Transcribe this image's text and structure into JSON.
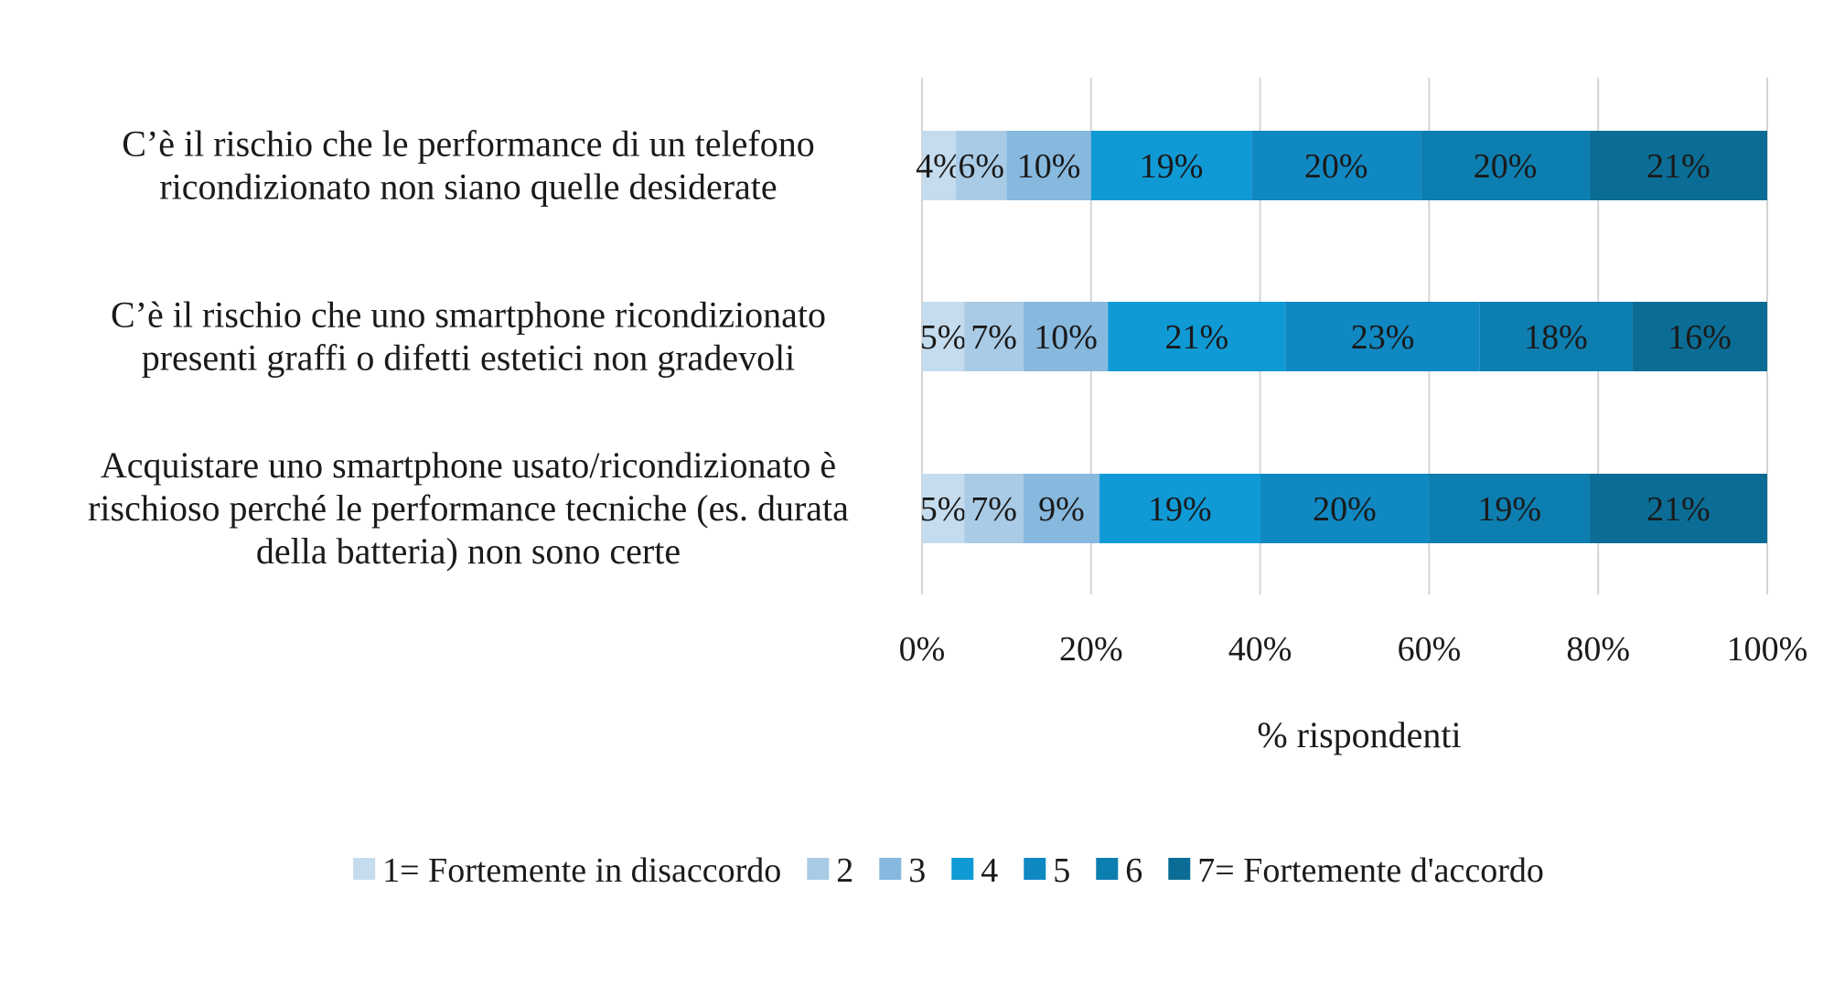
{
  "chart_data": {
    "type": "bar",
    "orientation": "horizontal",
    "stacked": true,
    "normalized": true,
    "title": "",
    "xlabel": "% rispondenti",
    "ylabel": "",
    "xlim": [
      0,
      100
    ],
    "x_ticks": [
      "0%",
      "20%",
      "40%",
      "60%",
      "80%",
      "100%"
    ],
    "x_tick_values": [
      0,
      20,
      40,
      60,
      80,
      100
    ],
    "grid": true,
    "legend_position": "bottom",
    "categories": [
      [
        "C’è il rischio che le performance di un telefono",
        "ricondizionato non siano quelle desiderate"
      ],
      [
        "C’è il rischio che uno smartphone ricondizionato",
        "presenti graffi o difetti estetici non gradevoli"
      ],
      [
        "Acquistare uno smartphone usato/ricondizionato è",
        "rischioso perché le performance tecniche (es. durata",
        "della batteria) non sono certe"
      ]
    ],
    "series": [
      {
        "name": "1= Fortemente in disaccordo",
        "color": "#c5dcee",
        "values": [
          4,
          5,
          5
        ],
        "labels": [
          "4%",
          "5%",
          "5%"
        ]
      },
      {
        "name": "2",
        "color": "#a9cbe6",
        "values": [
          6,
          7,
          7
        ],
        "labels": [
          "6%",
          "7%",
          "7%"
        ]
      },
      {
        "name": "3",
        "color": "#87b8de",
        "values": [
          10,
          10,
          9
        ],
        "labels": [
          "10%",
          "10%",
          "9%"
        ]
      },
      {
        "name": "4",
        "color": "#0f9ad6",
        "values": [
          19,
          21,
          19
        ],
        "labels": [
          "19%",
          "21%",
          "19%"
        ]
      },
      {
        "name": "5",
        "color": "#1088c2",
        "values": [
          20,
          23,
          20
        ],
        "labels": [
          "20%",
          "23%",
          "20%"
        ]
      },
      {
        "name": "6",
        "color": "#0d7eb0",
        "values": [
          20,
          18,
          19
        ],
        "labels": [
          "20%",
          "18%",
          "19%"
        ]
      },
      {
        "name": "7= Fortemente d'accordo",
        "color": "#0b6d95",
        "values": [
          21,
          16,
          21
        ],
        "labels": [
          "21%",
          "16%",
          "21%"
        ]
      }
    ]
  }
}
